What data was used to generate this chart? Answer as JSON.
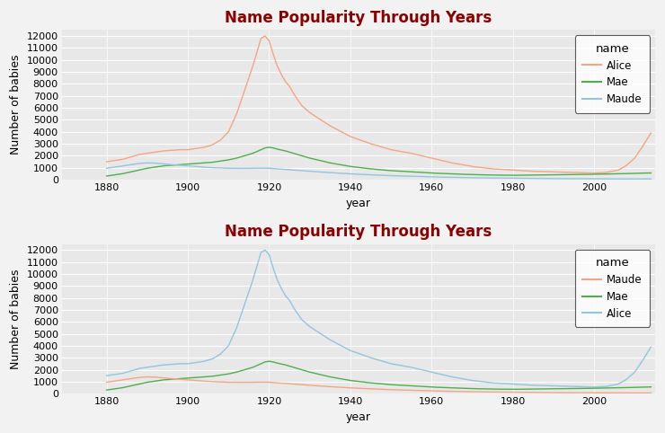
{
  "title": "Name Popularity Through Years",
  "xlabel": "year",
  "ylabel": "Number of babies",
  "title_color": "#8B0000",
  "bg_color": "#E8E8E8",
  "grid_color": "#FFFFFF",
  "ylim": [
    0,
    12500
  ],
  "yticks": [
    0,
    1000,
    2000,
    3000,
    4000,
    5000,
    6000,
    7000,
    8000,
    9000,
    10000,
    11000,
    12000
  ],
  "xticks": [
    1880,
    1900,
    1920,
    1940,
    1960,
    1980,
    2000
  ],
  "legend_title": "name",
  "top_legend": [
    "Alice",
    "Mae",
    "Maude"
  ],
  "bottom_legend": [
    "Maude",
    "Mae",
    "Alice"
  ],
  "alice_color_top": "#F4A582",
  "mae_color_top": "#4DAF4A",
  "maude_color_top": "#92C5DE",
  "alice_color_bottom": "#92C5DE",
  "mae_color_bottom": "#4DAF4A",
  "maude_color_bottom": "#F4A582"
}
